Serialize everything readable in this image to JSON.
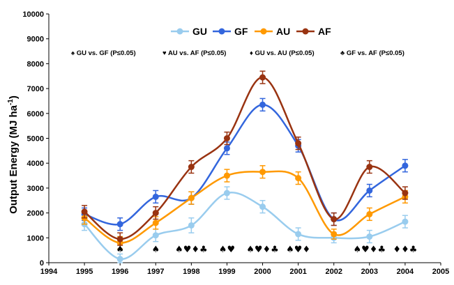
{
  "chart_data": {
    "type": "line",
    "title": "",
    "xlabel": "",
    "ylabel": "Output Energy (MJ ha",
    "ylabel_sup": "-1",
    "ylabel_close": ")",
    "xlim": [
      1994,
      2005
    ],
    "ylim": [
      0,
      10000
    ],
    "x_ticks": [
      "1994",
      "1995",
      "1996",
      "1997",
      "1998",
      "1999",
      "2000",
      "2001",
      "2002",
      "2003",
      "2004",
      "2005"
    ],
    "y_ticks": [
      "0",
      "1000",
      "2000",
      "3000",
      "4000",
      "5000",
      "6000",
      "7000",
      "8000",
      "9000",
      "10000"
    ],
    "x": [
      1995,
      1996,
      1997,
      1998,
      1999,
      2000,
      2001,
      2002,
      2003,
      2004
    ],
    "series": [
      {
        "name": "GU",
        "color": "#99ccee",
        "values": [
          1550,
          150,
          1100,
          1500,
          2800,
          2250,
          1150,
          1000,
          1050,
          1650
        ],
        "errors": [
          250,
          200,
          250,
          300,
          250,
          250,
          250,
          200,
          250,
          250
        ]
      },
      {
        "name": "GF",
        "color": "#3366dd",
        "values": [
          1950,
          1550,
          2650,
          2600,
          4600,
          6350,
          4700,
          1750,
          2900,
          3900
        ],
        "errors": [
          250,
          250,
          250,
          250,
          250,
          250,
          250,
          250,
          250,
          250
        ]
      },
      {
        "name": "AU",
        "color": "#ff9900",
        "values": [
          1800,
          800,
          1600,
          2600,
          3500,
          3650,
          3400,
          1150,
          1950,
          2650
        ],
        "errors": [
          250,
          250,
          250,
          250,
          250,
          250,
          250,
          200,
          250,
          250
        ]
      },
      {
        "name": "AF",
        "color": "#993311",
        "values": [
          2050,
          950,
          2000,
          3850,
          5000,
          7450,
          4800,
          1750,
          3850,
          2800
        ],
        "errors": [
          250,
          250,
          250,
          250,
          250,
          250,
          250,
          250,
          250,
          250
        ]
      }
    ],
    "notes": [
      {
        "symbol": "♠",
        "text": "GU vs. GF (P≤0.05)"
      },
      {
        "symbol": "♥",
        "text": "AU vs. AF (P≤0.05)"
      },
      {
        "symbol": "♦",
        "text": "GU vs. AU (P≤0.05)"
      },
      {
        "symbol": "♣",
        "text": "GF vs. AF (P≤0.05)"
      }
    ],
    "significance": [
      {
        "x": 1996,
        "marks": "♠"
      },
      {
        "x": 1997,
        "marks": "♠"
      },
      {
        "x": 1998,
        "marks": "♠♥♦♣"
      },
      {
        "x": 1999,
        "marks": "♠♥"
      },
      {
        "x": 2000,
        "marks": "♠♥♦♣"
      },
      {
        "x": 2001,
        "marks": "♠♥♦"
      },
      {
        "x": 2003,
        "marks": "♠♥♦♣"
      },
      {
        "x": 2004,
        "marks": "♦♦♣"
      }
    ],
    "grid": false,
    "legend": "top-center"
  }
}
